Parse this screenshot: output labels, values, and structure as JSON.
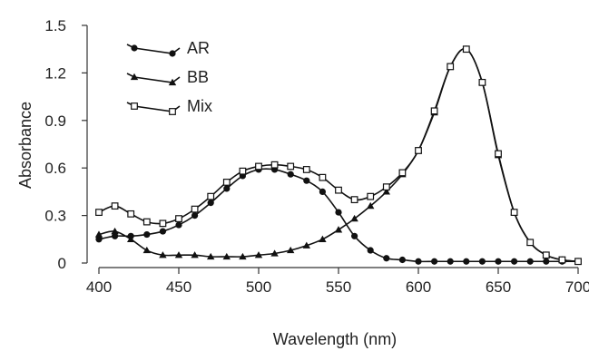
{
  "chart_data": {
    "type": "line",
    "xlabel": "Wavelength (nm)",
    "ylabel": "Absorbance",
    "xlim": [
      400,
      700
    ],
    "ylim": [
      0,
      1.5
    ],
    "xticks": [
      "400",
      "450",
      "500",
      "550",
      "600",
      "650",
      "700"
    ],
    "yticks": [
      "0",
      "0.3",
      "0.6",
      "0.9",
      "1.2",
      "1.5"
    ],
    "grid": false,
    "legend_position": "top-left",
    "color": "#111111",
    "series": [
      {
        "name": "AR",
        "marker": "filled-circle",
        "x": [
          400,
          410,
          420,
          430,
          440,
          450,
          460,
          470,
          480,
          490,
          500,
          510,
          520,
          530,
          540,
          550,
          560,
          570,
          580,
          590,
          600,
          610,
          620,
          630,
          640,
          650,
          660,
          670,
          680,
          690,
          700
        ],
        "y": [
          0.15,
          0.17,
          0.17,
          0.18,
          0.2,
          0.24,
          0.3,
          0.38,
          0.47,
          0.55,
          0.59,
          0.59,
          0.56,
          0.52,
          0.45,
          0.32,
          0.17,
          0.08,
          0.03,
          0.02,
          0.01,
          0.01,
          0.01,
          0.01,
          0.01,
          0.01,
          0.01,
          0.01,
          0.01,
          0.01,
          0.01
        ]
      },
      {
        "name": "BB",
        "marker": "filled-triangle",
        "x": [
          400,
          410,
          420,
          430,
          440,
          450,
          460,
          470,
          480,
          490,
          500,
          510,
          520,
          530,
          540,
          550,
          560,
          570,
          580,
          590,
          600,
          610,
          620,
          630,
          640,
          650,
          660,
          670,
          680,
          690,
          700
        ],
        "y": [
          0.18,
          0.2,
          0.15,
          0.08,
          0.05,
          0.05,
          0.05,
          0.04,
          0.04,
          0.04,
          0.05,
          0.06,
          0.08,
          0.11,
          0.15,
          0.21,
          0.28,
          0.36,
          0.45,
          0.56,
          0.71,
          0.95,
          1.24,
          1.35,
          1.14,
          0.68,
          0.32,
          0.13,
          0.05,
          0.02,
          0.01
        ]
      },
      {
        "name": "Mix",
        "marker": "open-square",
        "x": [
          400,
          410,
          420,
          430,
          440,
          450,
          460,
          470,
          480,
          490,
          500,
          510,
          520,
          530,
          540,
          550,
          560,
          570,
          580,
          590,
          600,
          610,
          620,
          630,
          640,
          650,
          660,
          670,
          680,
          690,
          700
        ],
        "y": [
          0.32,
          0.36,
          0.31,
          0.26,
          0.25,
          0.28,
          0.34,
          0.42,
          0.51,
          0.58,
          0.61,
          0.62,
          0.61,
          0.59,
          0.54,
          0.46,
          0.4,
          0.42,
          0.48,
          0.57,
          0.71,
          0.96,
          1.24,
          1.35,
          1.14,
          0.69,
          0.32,
          0.13,
          0.05,
          0.02,
          0.01
        ]
      }
    ]
  }
}
